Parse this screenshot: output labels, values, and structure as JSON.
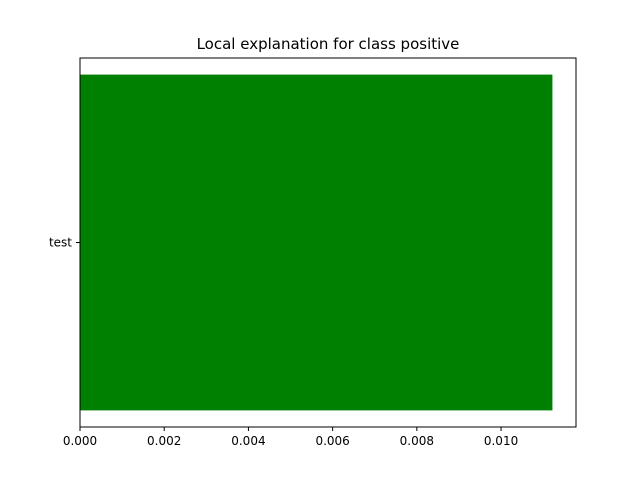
{
  "chart_data": {
    "type": "bar",
    "orientation": "horizontal",
    "title": "Local explanation for class positive",
    "xlabel": "",
    "ylabel": "",
    "categories": [
      "test"
    ],
    "values": [
      0.01122
    ],
    "xlim": [
      0,
      0.01178
    ],
    "xticks": [
      0.0,
      0.002,
      0.004,
      0.006,
      0.008,
      0.01
    ],
    "xtick_labels": [
      "0.000",
      "0.002",
      "0.004",
      "0.006",
      "0.008",
      "0.010"
    ],
    "bar_color": "#008000",
    "grid": false,
    "legend": "none"
  }
}
